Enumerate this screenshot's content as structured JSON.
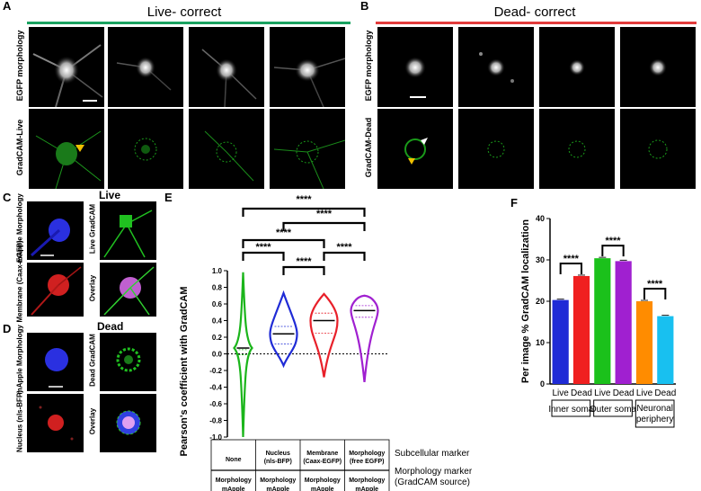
{
  "panel_A": {
    "letter": "A",
    "header": "Live- correct",
    "header_color": "#1aa260",
    "row1_label": "EGFP morphology",
    "row2_label": "GradCAM-Live"
  },
  "panel_B": {
    "letter": "B",
    "header": "Dead- correct",
    "header_color": "#e23b3b",
    "row1_label": "EGFP morphology",
    "row2_label": "GradCAM-Dead"
  },
  "panel_C": {
    "letter": "C",
    "header": "Live",
    "tile_labels": [
      "mApple Morphology",
      "Live GradCAM",
      "Membrane (Caax-EGFP)",
      "Overlay"
    ]
  },
  "panel_D": {
    "letter": "D",
    "header": "Dead",
    "tile_labels": [
      "mApple Morphology",
      "Dead GradCAM",
      "Nucleus (nls-BFP)",
      "Overlay"
    ]
  },
  "panel_E": {
    "letter": "E",
    "ylabel": "Pearson's coefficient with GradCAM",
    "yticks": [
      "1.0",
      "0.8",
      "0.6",
      "0.4",
      "0.2",
      "0.0",
      "-0.2",
      "-0.4",
      "-0.6",
      "-0.8",
      "-1.0"
    ],
    "significance": "****",
    "subcellular_label": "Subcellular marker",
    "morphology_label": "Morphology marker (GradCAM source)",
    "subcellular": [
      "None",
      "Nucleus (nls-BFP)",
      "Membrane (Caax-EGFP)",
      "Morphology (free EGFP)"
    ],
    "morphology": [
      "Morphology mApple",
      "Morphology mApple",
      "Morphology mApple",
      "Morphology mApple"
    ]
  },
  "panel_F": {
    "letter": "F",
    "ylabel": "Per image % GradCAM localization",
    "yticks": [
      "40",
      "30",
      "20",
      "10",
      "0"
    ],
    "significance": "****",
    "x_labels": [
      "Live",
      "Dead",
      "Live",
      "Dead",
      "Live",
      "Dead"
    ],
    "groups": [
      "Inner soma",
      "Outer soma",
      "Neuronal periphery"
    ]
  },
  "chart_data": [
    {
      "type": "violin",
      "title": "",
      "ylabel": "Pearson's coefficient with GradCAM",
      "ylim": [
        -1.0,
        1.0
      ],
      "categories": [
        "None",
        "Nucleus (nls-BFP)",
        "Membrane (Caax-EGFP)",
        "Morphology (free EGFP)"
      ],
      "medians": [
        0.07,
        0.24,
        0.4,
        0.52
      ],
      "q1": [
        -0.01,
        0.12,
        0.25,
        0.44
      ],
      "q3": [
        0.05,
        0.33,
        0.49,
        0.58
      ],
      "mins": [
        -1.0,
        -0.14,
        -0.28,
        -0.34
      ],
      "maxs": [
        0.98,
        0.73,
        0.72,
        0.7
      ],
      "colors": [
        "#1bb51b",
        "#1f2bd6",
        "#e8202a",
        "#a020d0"
      ],
      "comparisons": [
        [
          0,
          3
        ],
        [
          1,
          3
        ],
        [
          0,
          2
        ],
        [
          0,
          1
        ],
        [
          1,
          2
        ],
        [
          2,
          3
        ]
      ]
    },
    {
      "type": "bar",
      "title": "",
      "ylabel": "Per image % GradCAM localization",
      "ylim": [
        0,
        40
      ],
      "categories": [
        "Live",
        "Dead",
        "Live",
        "Dead",
        "Live",
        "Dead"
      ],
      "groups": [
        "Inner soma",
        "Outer soma",
        "Neuronal periphery"
      ],
      "values": [
        20.3,
        26.1,
        30.4,
        29.7,
        20.0,
        16.4
      ],
      "colors": [
        "#1f2bd6",
        "#f02020",
        "#1bc11b",
        "#a020d0",
        "#ff8c00",
        "#18c0f0"
      ],
      "comparisons": [
        [
          0,
          1
        ],
        [
          2,
          3
        ],
        [
          4,
          5
        ]
      ]
    }
  ]
}
